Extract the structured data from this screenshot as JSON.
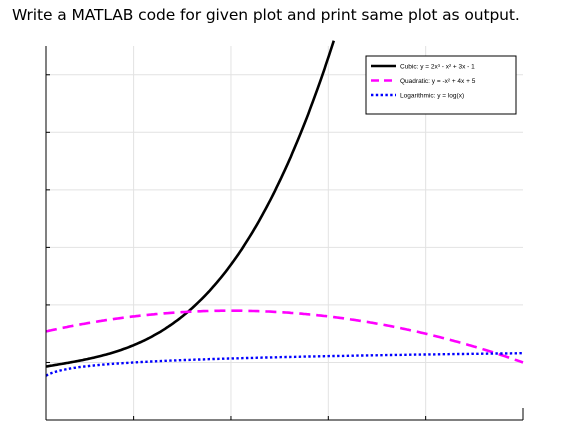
{
  "question": "Write a MATLAB code for given plot and print same plot as output.",
  "chart_data": {
    "type": "line",
    "xlim": [
      0.1,
      5
    ],
    "ylim": [
      -10,
      55
    ],
    "grid": true,
    "legend_position": "top-right",
    "title": "",
    "xlabel": "",
    "ylabel": "",
    "series": [
      {
        "name": "Cubic: y = 2x³ - x² + 3x - 1",
        "expr": "cubic",
        "color": "#000000",
        "style": "solid",
        "width": 2.6
      },
      {
        "name": "Quadratic: y = -x² + 4x + 5",
        "expr": "quadratic",
        "color": "#ff00ff",
        "style": "dashed",
        "width": 2.6
      },
      {
        "name": "Logarithmic: y = log(x)",
        "expr": "log",
        "color": "#0000ff",
        "style": "dotted",
        "width": 2.4
      }
    ]
  }
}
